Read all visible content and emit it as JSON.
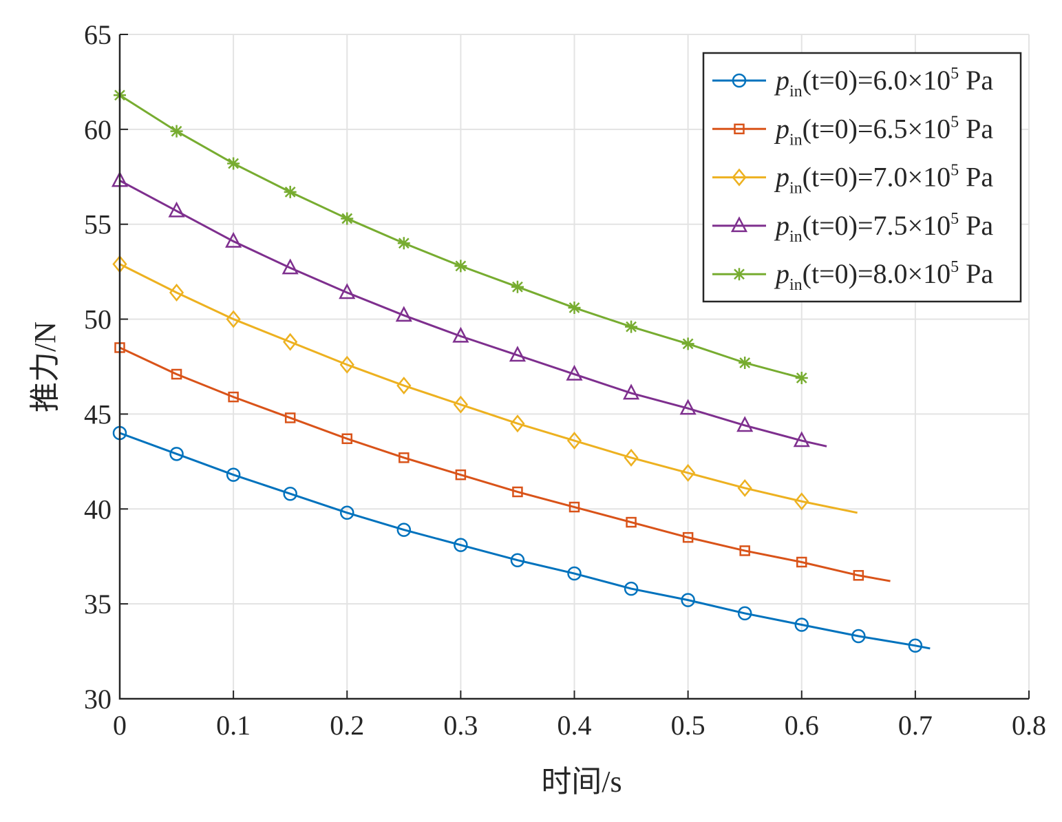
{
  "chart_data": {
    "type": "line",
    "title": "",
    "xlabel": "时间/s",
    "ylabel": "推力/N",
    "xlim": [
      0,
      0.8
    ],
    "ylim": [
      30,
      65
    ],
    "xticks": [
      0,
      0.1,
      0.2,
      0.3,
      0.4,
      0.5,
      0.6,
      0.7,
      0.8
    ],
    "xtick_labels": [
      "0",
      "0.1",
      "0.2",
      "0.3",
      "0.4",
      "0.5",
      "0.6",
      "0.7",
      "0.8"
    ],
    "yticks": [
      30,
      35,
      40,
      45,
      50,
      55,
      60,
      65
    ],
    "ytick_labels": [
      "30",
      "35",
      "40",
      "45",
      "50",
      "55",
      "60",
      "65"
    ],
    "grid": true,
    "legend_position": "top-right",
    "series": [
      {
        "name": "p_in(t=0)=6.0×10^5 Pa",
        "legend": {
          "p": "p",
          "sub": "in",
          "mid": "(t=0)=6.0×10",
          "sup": "5",
          "unit": " Pa"
        },
        "color": "#0072BD",
        "marker": "circle",
        "x": [
          0,
          0.05,
          0.1,
          0.15,
          0.2,
          0.25,
          0.3,
          0.35,
          0.4,
          0.45,
          0.5,
          0.55,
          0.6,
          0.65,
          0.7,
          0.713
        ],
        "y": [
          44.0,
          42.9,
          41.8,
          40.8,
          39.8,
          38.9,
          38.1,
          37.3,
          36.6,
          35.8,
          35.2,
          34.5,
          33.9,
          33.3,
          32.8,
          32.65
        ]
      },
      {
        "name": "p_in(t=0)=6.5×10^5 Pa",
        "legend": {
          "p": "p",
          "sub": "in",
          "mid": "(t=0)=6.5×10",
          "sup": "5",
          "unit": " Pa"
        },
        "color": "#D95319",
        "marker": "square",
        "x": [
          0,
          0.05,
          0.1,
          0.15,
          0.2,
          0.25,
          0.3,
          0.35,
          0.4,
          0.45,
          0.5,
          0.55,
          0.6,
          0.65,
          0.678
        ],
        "y": [
          48.5,
          47.1,
          45.9,
          44.8,
          43.7,
          42.7,
          41.8,
          40.9,
          40.1,
          39.3,
          38.5,
          37.8,
          37.2,
          36.5,
          36.2
        ]
      },
      {
        "name": "p_in(t=0)=7.0×10^5 Pa",
        "legend": {
          "p": "p",
          "sub": "in",
          "mid": "(t=0)=7.0×10",
          "sup": "5",
          "unit": " Pa"
        },
        "color": "#EDB120",
        "marker": "diamond",
        "x": [
          0,
          0.05,
          0.1,
          0.15,
          0.2,
          0.25,
          0.3,
          0.35,
          0.4,
          0.45,
          0.5,
          0.55,
          0.6,
          0.649
        ],
        "y": [
          52.9,
          51.4,
          50.0,
          48.8,
          47.6,
          46.5,
          45.5,
          44.5,
          43.6,
          42.7,
          41.9,
          41.1,
          40.4,
          39.8
        ]
      },
      {
        "name": "p_in(t=0)=7.5×10^5 Pa",
        "legend": {
          "p": "p",
          "sub": "in",
          "mid": "(t=0)=7.5×10",
          "sup": "5",
          "unit": " Pa"
        },
        "color": "#7E2F8E",
        "marker": "triangle",
        "x": [
          0,
          0.05,
          0.1,
          0.15,
          0.2,
          0.25,
          0.3,
          0.35,
          0.4,
          0.45,
          0.5,
          0.55,
          0.6,
          0.622
        ],
        "y": [
          57.3,
          55.7,
          54.1,
          52.7,
          51.4,
          50.2,
          49.1,
          48.1,
          47.1,
          46.1,
          45.3,
          44.4,
          43.6,
          43.3
        ]
      },
      {
        "name": "p_in(t=0)=8.0×10^5 Pa",
        "legend": {
          "p": "p",
          "sub": "in",
          "mid": "(t=0)=8.0×10",
          "sup": "5",
          "unit": " Pa"
        },
        "color": "#77AC30",
        "marker": "asterisk",
        "x": [
          0,
          0.05,
          0.1,
          0.15,
          0.2,
          0.25,
          0.3,
          0.35,
          0.4,
          0.45,
          0.5,
          0.55,
          0.6
        ],
        "y": [
          61.8,
          59.9,
          58.2,
          56.7,
          55.3,
          54.0,
          52.8,
          51.7,
          50.6,
          49.6,
          48.7,
          47.7,
          46.9
        ]
      }
    ],
    "marker_every": 0.05
  }
}
